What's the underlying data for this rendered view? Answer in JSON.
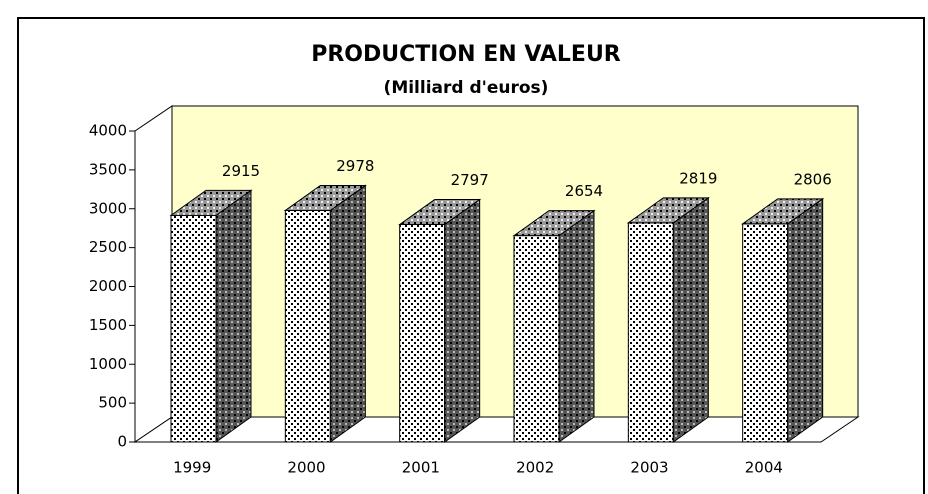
{
  "chart_data": {
    "type": "bar3d",
    "title": "PRODUCTION EN VALEUR",
    "subtitle": "(Milliard d'euros)",
    "categories": [
      "1999",
      "2000",
      "2001",
      "2002",
      "2003",
      "2004"
    ],
    "values": [
      2915,
      2978,
      2797,
      2654,
      2819,
      2806
    ],
    "ylim": [
      0,
      4000
    ],
    "yticks": [
      0,
      500,
      1000,
      1500,
      2000,
      2500,
      3000,
      3500,
      4000
    ],
    "wall_color": "#ffffcc"
  }
}
